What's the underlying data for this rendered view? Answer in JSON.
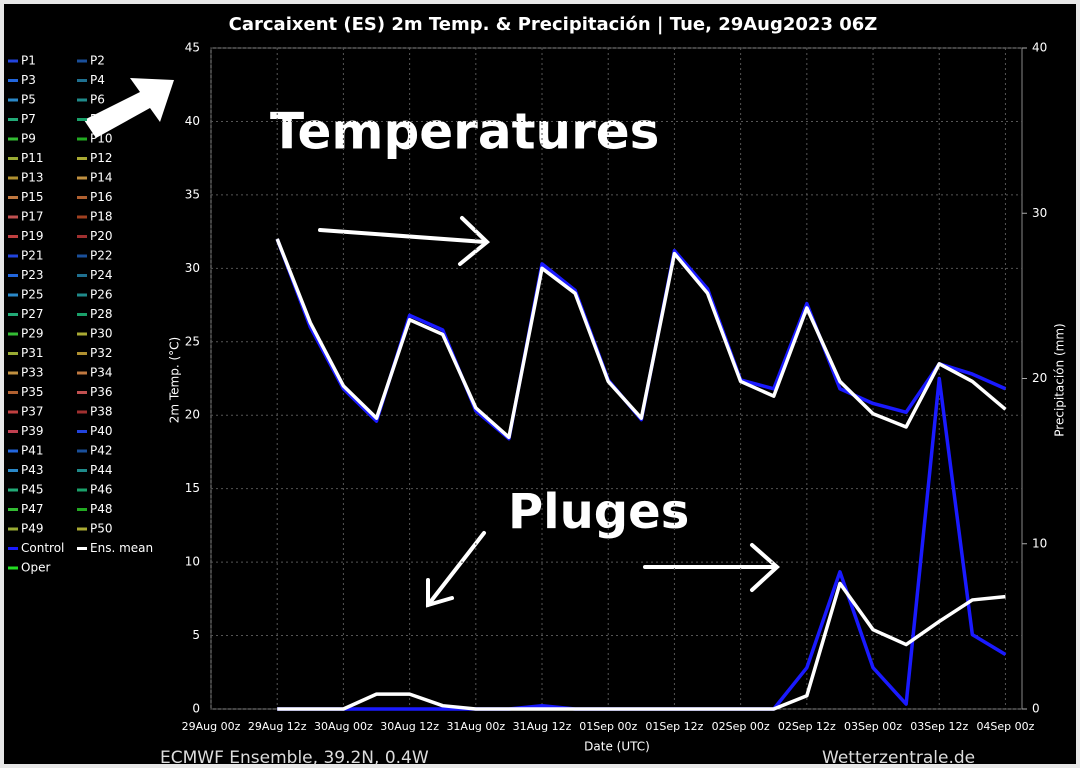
{
  "chart_data": {
    "type": "line",
    "title": "Carcaixent  (ES)  2m Temp. & Precipitación | Tue, 29Aug2023 06Z",
    "ylabel": "2m Temp. (°C)",
    "y2label": "Precipitación (mm)",
    "xlabel": "Date (UTC)",
    "footer_left": "ECMWF Ensemble, 39.2N, 0.4W",
    "footer_right": "Wetterzentrale.de",
    "annotations": [
      "Temperatures",
      "Pluges"
    ],
    "xlim": [
      0,
      147
    ],
    "xticks": [
      {
        "value": 0,
        "label": "29Aug 00z"
      },
      {
        "value": 12,
        "label": "29Aug 12z"
      },
      {
        "value": 24,
        "label": "30Aug 00z"
      },
      {
        "value": 36,
        "label": "30Aug 12z"
      },
      {
        "value": 48,
        "label": "31Aug 00z"
      },
      {
        "value": 60,
        "label": "31Aug 12z"
      },
      {
        "value": 72,
        "label": "01Sep 00z"
      },
      {
        "value": 84,
        "label": "01Sep 12z"
      },
      {
        "value": 96,
        "label": "02Sep 00z"
      },
      {
        "value": 108,
        "label": "02Sep 12z"
      },
      {
        "value": 120,
        "label": "03Sep 00z"
      },
      {
        "value": 132,
        "label": "03Sep 12z"
      },
      {
        "value": 144,
        "label": "04Sep 00z"
      }
    ],
    "ylim": [
      0,
      45
    ],
    "yticks": [
      0,
      5,
      10,
      15,
      20,
      25,
      30,
      35,
      40,
      45
    ],
    "y2lim": [
      0,
      40
    ],
    "y2ticks": [
      0,
      10,
      20,
      30,
      40
    ],
    "grid": true,
    "x": [
      12,
      18,
      24,
      30,
      36,
      42,
      48,
      54,
      60,
      66,
      72,
      78,
      84,
      90,
      96,
      102,
      108,
      114,
      120,
      126,
      132,
      138,
      144
    ],
    "series": [
      {
        "name": "Control",
        "color": "#1a1aff",
        "values": [
          32,
          26,
          21.8,
          19.6,
          26.8,
          25.8,
          20.3,
          18.4,
          30.3,
          28.5,
          22.4,
          19.7,
          31.2,
          28.6,
          22.4,
          21.8,
          27.6,
          21.8,
          20.8,
          20.2,
          23.5,
          22.8,
          21.8
        ],
        "precip": [
          0,
          0,
          0,
          0,
          0,
          0,
          0,
          0,
          0.2,
          0,
          0,
          0,
          0,
          0,
          0,
          0,
          2.5,
          8.3,
          2.5,
          0.3,
          20,
          4.5,
          3.3
        ]
      },
      {
        "name": "Ens. mean",
        "color": "#ffffff",
        "values": [
          32,
          26.3,
          22,
          19.8,
          26.5,
          25.5,
          20.5,
          18.5,
          30,
          28.3,
          22.3,
          19.8,
          31,
          28.3,
          22.3,
          21.3,
          27.3,
          22.3,
          20.1,
          19.2,
          23.5,
          22.3,
          20.4
        ],
        "precip": [
          0,
          0,
          0,
          0.9,
          0.9,
          0.2,
          0,
          0,
          0,
          0,
          0,
          0,
          0,
          0,
          0,
          0,
          0.8,
          7.6,
          4.8,
          3.9,
          5.3,
          6.6,
          6.8
        ]
      }
    ],
    "legend": [
      {
        "name": "P1",
        "color": "#2244dd"
      },
      {
        "name": "P2",
        "color": "#1a4f9a"
      },
      {
        "name": "P3",
        "color": "#2266dd"
      },
      {
        "name": "P4",
        "color": "#1f7090"
      },
      {
        "name": "P5",
        "color": "#2a88c8"
      },
      {
        "name": "P6",
        "color": "#1f8a8a"
      },
      {
        "name": "P7",
        "color": "#22aa77"
      },
      {
        "name": "P8",
        "color": "#1aa06a"
      },
      {
        "name": "P9",
        "color": "#33bb33"
      },
      {
        "name": "P10",
        "color": "#22aa22"
      },
      {
        "name": "P11",
        "color": "#99aa33"
      },
      {
        "name": "P12",
        "color": "#aaaa33"
      },
      {
        "name": "P13",
        "color": "#b09030"
      },
      {
        "name": "P14",
        "color": "#c09040"
      },
      {
        "name": "P15",
        "color": "#c07840"
      },
      {
        "name": "P16",
        "color": "#b06030"
      },
      {
        "name": "P17",
        "color": "#c05050"
      },
      {
        "name": "P18",
        "color": "#a04020"
      },
      {
        "name": "P19",
        "color": "#c04040"
      },
      {
        "name": "P20",
        "color": "#a03030"
      },
      {
        "name": "P21",
        "color": "#2244dd"
      },
      {
        "name": "P22",
        "color": "#1a4f9a"
      },
      {
        "name": "P23",
        "color": "#2266dd"
      },
      {
        "name": "P24",
        "color": "#1f7090"
      },
      {
        "name": "P25",
        "color": "#2a88c8"
      },
      {
        "name": "P26",
        "color": "#1f8a8a"
      },
      {
        "name": "P27",
        "color": "#22aa77"
      },
      {
        "name": "P28",
        "color": "#1aa06a"
      },
      {
        "name": "P29",
        "color": "#33bb33"
      },
      {
        "name": "P30",
        "color": "#aaaa33"
      },
      {
        "name": "P31",
        "color": "#99aa33"
      },
      {
        "name": "P32",
        "color": "#b09030"
      },
      {
        "name": "P33",
        "color": "#c09040"
      },
      {
        "name": "P34",
        "color": "#c07840"
      },
      {
        "name": "P35",
        "color": "#b06030"
      },
      {
        "name": "P36",
        "color": "#c05050"
      },
      {
        "name": "P37",
        "color": "#c04040"
      },
      {
        "name": "P38",
        "color": "#a03030"
      },
      {
        "name": "P39",
        "color": "#c04050"
      },
      {
        "name": "P40",
        "color": "#2244dd"
      },
      {
        "name": "P41",
        "color": "#2266dd"
      },
      {
        "name": "P42",
        "color": "#1a4f9a"
      },
      {
        "name": "P43",
        "color": "#2a88c8"
      },
      {
        "name": "P44",
        "color": "#1f8a8a"
      },
      {
        "name": "P45",
        "color": "#22aa77"
      },
      {
        "name": "P46",
        "color": "#1aa06a"
      },
      {
        "name": "P47",
        "color": "#33bb33"
      },
      {
        "name": "P48",
        "color": "#22aa22"
      },
      {
        "name": "P49",
        "color": "#99aa33"
      },
      {
        "name": "P50",
        "color": "#aaaa33"
      },
      {
        "name": "Oper",
        "color": "#22dd22"
      }
    ]
  }
}
